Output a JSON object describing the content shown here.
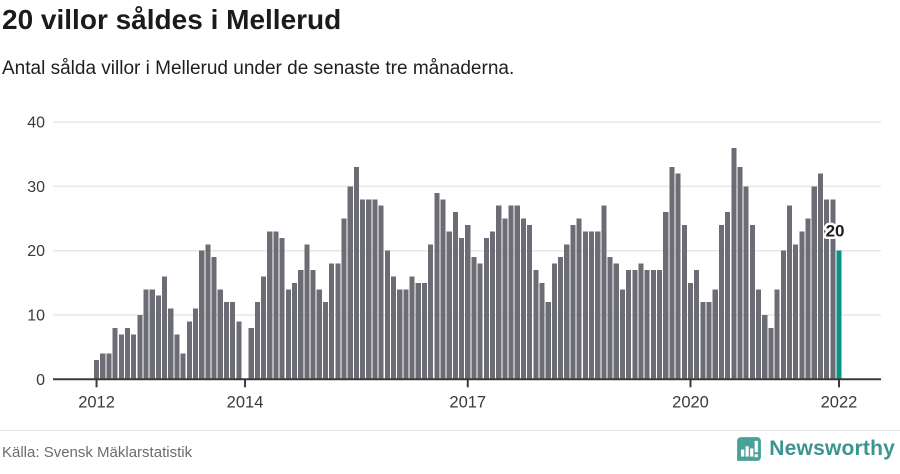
{
  "header": {
    "title": "20 villor såldes i Mellerud",
    "subtitle": "Antal sålda villor i Mellerud under de senaste tre månaderna."
  },
  "footer": {
    "source": "Källa: Svensk Mäklarstatistik",
    "brand": "Newsworthy"
  },
  "colors": {
    "bar": "#6c6c74",
    "highlight": "#0a9488",
    "grid": "#e7e7e7",
    "axis": "#3a3a3a",
    "tick_label": "#3a3a3a",
    "annotation_text": "#1f1f1f",
    "logo_badge": "#4ba09a",
    "logo_text": "#3b948e"
  },
  "chart_data": {
    "type": "bar",
    "title": "20 villor såldes i Mellerud",
    "subtitle": "Antal sålda villor i Mellerud under de senaste tre månaderna.",
    "xlabel": "",
    "ylabel": "",
    "x_unit": "month",
    "start_month": "2012-01",
    "end_month": "2022-01",
    "ylim": [
      0,
      40
    ],
    "y_ticks": [
      0,
      10,
      20,
      30,
      40
    ],
    "year_ticks": [
      2012,
      2014,
      2017,
      2020,
      2022
    ],
    "grid": true,
    "values": [
      3,
      4,
      4,
      8,
      7,
      8,
      7,
      10,
      14,
      14,
      13,
      16,
      11,
      7,
      4,
      9,
      11,
      20,
      21,
      19,
      14,
      12,
      12,
      9,
      0,
      8,
      12,
      16,
      23,
      23,
      22,
      14,
      15,
      17,
      21,
      17,
      14,
      12,
      18,
      18,
      25,
      30,
      33,
      28,
      28,
      28,
      27,
      20,
      16,
      14,
      14,
      16,
      15,
      15,
      21,
      29,
      28,
      23,
      26,
      22,
      24,
      19,
      18,
      22,
      23,
      27,
      25,
      27,
      27,
      25,
      24,
      17,
      15,
      12,
      18,
      19,
      21,
      24,
      25,
      23,
      23,
      23,
      27,
      19,
      18,
      14,
      17,
      17,
      18,
      17,
      17,
      17,
      26,
      33,
      32,
      24,
      15,
      17,
      12,
      12,
      14,
      24,
      26,
      36,
      33,
      30,
      24,
      14,
      10,
      8,
      14,
      20,
      27,
      21,
      23,
      25,
      30,
      32,
      28,
      28,
      20
    ],
    "highlight": {
      "index": 120,
      "value": 20,
      "label": "20",
      "month": "2022-01"
    }
  }
}
